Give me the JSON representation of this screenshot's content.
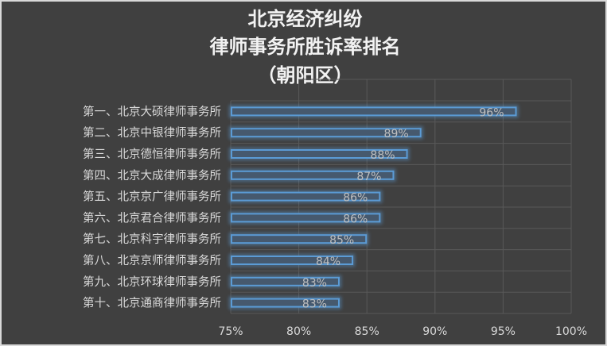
{
  "chart_data": {
    "type": "bar",
    "orientation": "horizontal",
    "title": [
      "北京经济纠纷",
      "律师事务所胜诉率排名",
      "（朝阳区）"
    ],
    "categories": [
      "第一、北京大硕律师事务所",
      "第二、北京中银律师事务所",
      "第三、北京德恒律师事务所",
      "第四、北京大成律师事务所",
      "第五、北京京广律师事务所",
      "第六、北京君合律师事务所",
      "第七、北京科宇律师事务所",
      "第八、北京京师律师事务所",
      "第九、北京环球律师事务所",
      "第十、北京通商律师事务所"
    ],
    "values": [
      96,
      89,
      88,
      87,
      86,
      86,
      85,
      84,
      83,
      83
    ],
    "data_labels": [
      "96%",
      "89%",
      "88%",
      "87%",
      "86%",
      "86%",
      "85%",
      "84%",
      "83%",
      "83%"
    ],
    "xlim": [
      75,
      100
    ],
    "xticks": [
      "75%",
      "80%",
      "85%",
      "90%",
      "95%",
      "100%"
    ],
    "grid": true,
    "legend": "none",
    "colors": {
      "background": "#404040",
      "bar_fill": "#46596e",
      "bar_edge": "#5b9bd5",
      "grid": "#595959",
      "text": "#d9d9d9",
      "title": "#f2f2f2"
    }
  }
}
